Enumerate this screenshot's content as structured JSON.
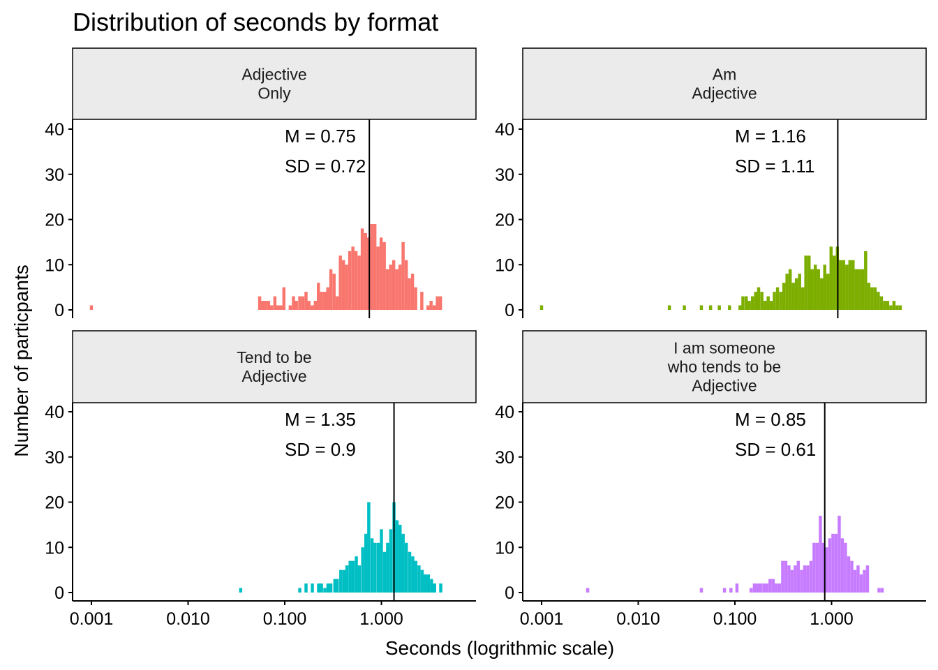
{
  "chart_data": {
    "type": "histogram",
    "title": "Distribution of seconds by format",
    "xlabel": "Seconds (logrithmic scale)",
    "ylabel": "Number of particpants",
    "x_scale": "log10",
    "x_ticks": [
      0.001,
      0.01,
      0.1,
      1.0
    ],
    "x_tick_labels": [
      "0.001",
      "0.010",
      "0.100",
      "1.000"
    ],
    "y_ticks": [
      0,
      10,
      20,
      30,
      40
    ],
    "ylim": [
      0,
      40
    ],
    "grid": false,
    "legend": "none",
    "panels": [
      {
        "strip_lines": [
          "Adjective",
          "Only"
        ],
        "color": "#F8766D",
        "mean_line": 0.75,
        "annotation": [
          "M = 0.75",
          "SD = 0.72"
        ],
        "bins": [
          [
            0.001,
            1
          ],
          [
            0.055,
            3
          ],
          [
            0.059,
            2
          ],
          [
            0.063,
            2
          ],
          [
            0.068,
            2
          ],
          [
            0.073,
            1
          ],
          [
            0.079,
            3
          ],
          [
            0.085,
            1
          ],
          [
            0.091,
            1
          ],
          [
            0.098,
            5
          ],
          [
            0.114,
            1
          ],
          [
            0.123,
            3
          ],
          [
            0.132,
            2
          ],
          [
            0.143,
            3
          ],
          [
            0.154,
            3
          ],
          [
            0.166,
            4
          ],
          [
            0.178,
            2
          ],
          [
            0.192,
            1
          ],
          [
            0.207,
            2
          ],
          [
            0.223,
            6
          ],
          [
            0.24,
            4
          ],
          [
            0.259,
            4
          ],
          [
            0.279,
            5
          ],
          [
            0.3,
            9
          ],
          [
            0.324,
            8
          ],
          [
            0.349,
            3
          ],
          [
            0.376,
            12
          ],
          [
            0.405,
            11
          ],
          [
            0.436,
            10
          ],
          [
            0.47,
            13
          ],
          [
            0.507,
            14
          ],
          [
            0.546,
            13
          ],
          [
            0.589,
            12
          ],
          [
            0.634,
            18
          ],
          [
            0.684,
            17
          ],
          [
            0.737,
            16
          ],
          [
            0.794,
            19
          ],
          [
            0.856,
            19
          ],
          [
            0.922,
            14
          ],
          [
            0.994,
            16
          ],
          [
            1.071,
            15
          ],
          [
            1.154,
            9
          ],
          [
            1.244,
            10
          ],
          [
            1.34,
            11
          ],
          [
            1.444,
            9
          ],
          [
            1.556,
            10
          ],
          [
            1.677,
            15
          ],
          [
            1.808,
            11
          ],
          [
            1.948,
            7
          ],
          [
            2.099,
            8
          ],
          [
            2.262,
            5
          ],
          [
            2.618,
            4
          ],
          [
            3.03,
            1
          ],
          [
            3.265,
            2
          ],
          [
            3.519,
            1
          ],
          [
            3.792,
            3
          ],
          [
            4.086,
            3
          ]
        ]
      },
      {
        "strip_lines": [
          "Am",
          "Adjective"
        ],
        "color": "#7CAE00",
        "mean_line": 1.16,
        "annotation": [
          "M = 1.16",
          "SD = 1.11"
        ],
        "bins": [
          [
            0.001,
            1
          ],
          [
            0.021,
            1
          ],
          [
            0.03,
            1
          ],
          [
            0.045,
            1
          ],
          [
            0.056,
            1
          ],
          [
            0.069,
            1
          ],
          [
            0.088,
            1
          ],
          [
            0.113,
            1
          ],
          [
            0.121,
            3
          ],
          [
            0.131,
            3
          ],
          [
            0.141,
            2
          ],
          [
            0.152,
            3
          ],
          [
            0.164,
            4
          ],
          [
            0.176,
            5
          ],
          [
            0.19,
            4
          ],
          [
            0.205,
            2
          ],
          [
            0.221,
            3
          ],
          [
            0.238,
            2
          ],
          [
            0.256,
            4
          ],
          [
            0.276,
            5
          ],
          [
            0.298,
            4
          ],
          [
            0.321,
            6
          ],
          [
            0.346,
            8
          ],
          [
            0.373,
            9
          ],
          [
            0.402,
            6
          ],
          [
            0.433,
            7
          ],
          [
            0.467,
            8
          ],
          [
            0.503,
            5
          ],
          [
            0.542,
            12
          ],
          [
            0.585,
            12
          ],
          [
            0.63,
            9
          ],
          [
            0.679,
            10
          ],
          [
            0.732,
            9
          ],
          [
            0.789,
            7
          ],
          [
            0.85,
            10
          ],
          [
            0.917,
            8
          ],
          [
            0.988,
            14
          ],
          [
            1.065,
            12
          ],
          [
            1.148,
            14
          ],
          [
            1.237,
            11
          ],
          [
            1.333,
            11
          ],
          [
            1.437,
            10
          ],
          [
            1.549,
            11
          ],
          [
            1.669,
            11
          ],
          [
            1.799,
            9
          ],
          [
            1.939,
            9
          ],
          [
            2.09,
            9
          ],
          [
            2.252,
            13
          ],
          [
            2.428,
            6
          ],
          [
            2.617,
            5
          ],
          [
            2.82,
            5
          ],
          [
            3.04,
            4
          ],
          [
            3.277,
            3
          ],
          [
            3.532,
            2
          ],
          [
            3.806,
            2
          ],
          [
            4.102,
            1
          ],
          [
            4.421,
            2
          ],
          [
            4.765,
            1
          ],
          [
            5.136,
            1
          ]
        ]
      },
      {
        "strip_lines": [
          "Tend to be",
          "Adjective"
        ],
        "color": "#00BFC4",
        "mean_line": 1.35,
        "annotation": [
          "M = 1.35",
          "SD = 0.9"
        ],
        "bins": [
          [
            0.035,
            1
          ],
          [
            0.143,
            1
          ],
          [
            0.166,
            2
          ],
          [
            0.193,
            2
          ],
          [
            0.224,
            2
          ],
          [
            0.24,
            2
          ],
          [
            0.26,
            1
          ],
          [
            0.28,
            2
          ],
          [
            0.3,
            2
          ],
          [
            0.33,
            3
          ],
          [
            0.35,
            3
          ],
          [
            0.38,
            5
          ],
          [
            0.41,
            5
          ],
          [
            0.44,
            6
          ],
          [
            0.475,
            7
          ],
          [
            0.51,
            7
          ],
          [
            0.55,
            8
          ],
          [
            0.59,
            6
          ],
          [
            0.64,
            10
          ],
          [
            0.69,
            13
          ],
          [
            0.74,
            20
          ],
          [
            0.8,
            12
          ],
          [
            0.86,
            11
          ],
          [
            0.93,
            11
          ],
          [
            1.0,
            14
          ],
          [
            1.08,
            9
          ],
          [
            1.16,
            11
          ],
          [
            1.25,
            14
          ],
          [
            1.35,
            20
          ],
          [
            1.45,
            16
          ],
          [
            1.56,
            15
          ],
          [
            1.68,
            13
          ],
          [
            1.81,
            11
          ],
          [
            1.96,
            9
          ],
          [
            2.11,
            8
          ],
          [
            2.27,
            7
          ],
          [
            2.45,
            6
          ],
          [
            2.64,
            5
          ],
          [
            2.84,
            4
          ],
          [
            3.06,
            4
          ],
          [
            3.3,
            3
          ],
          [
            3.55,
            2
          ],
          [
            4.11,
            2
          ]
        ]
      },
      {
        "strip_lines": [
          "I am someone",
          "who tends to be",
          "Adjective"
        ],
        "color": "#C77CFF",
        "mean_line": 0.85,
        "annotation": [
          "M = 0.85",
          "SD = 0.61"
        ],
        "bins": [
          [
            0.003,
            1
          ],
          [
            0.045,
            1
          ],
          [
            0.078,
            1
          ],
          [
            0.091,
            1
          ],
          [
            0.105,
            2
          ],
          [
            0.147,
            1
          ],
          [
            0.159,
            2
          ],
          [
            0.171,
            2
          ],
          [
            0.184,
            2
          ],
          [
            0.199,
            2
          ],
          [
            0.214,
            2
          ],
          [
            0.231,
            3
          ],
          [
            0.249,
            3
          ],
          [
            0.268,
            2
          ],
          [
            0.289,
            2
          ],
          [
            0.312,
            7
          ],
          [
            0.336,
            7
          ],
          [
            0.362,
            6
          ],
          [
            0.39,
            5
          ],
          [
            0.421,
            6
          ],
          [
            0.453,
            7
          ],
          [
            0.489,
            5
          ],
          [
            0.527,
            6
          ],
          [
            0.567,
            6
          ],
          [
            0.612,
            7
          ],
          [
            0.659,
            11
          ],
          [
            0.71,
            11
          ],
          [
            0.766,
            17
          ],
          [
            0.825,
            11
          ],
          [
            0.889,
            10
          ],
          [
            0.958,
            12
          ],
          [
            1.033,
            13
          ],
          [
            1.113,
            13
          ],
          [
            1.2,
            17
          ],
          [
            1.293,
            12
          ],
          [
            1.393,
            11
          ],
          [
            1.502,
            8
          ],
          [
            1.619,
            7
          ],
          [
            1.744,
            5
          ],
          [
            1.88,
            6
          ],
          [
            2.026,
            4
          ],
          [
            2.184,
            5
          ],
          [
            2.353,
            6
          ],
          [
            3.096,
            1
          ],
          [
            3.337,
            1
          ]
        ]
      }
    ]
  }
}
